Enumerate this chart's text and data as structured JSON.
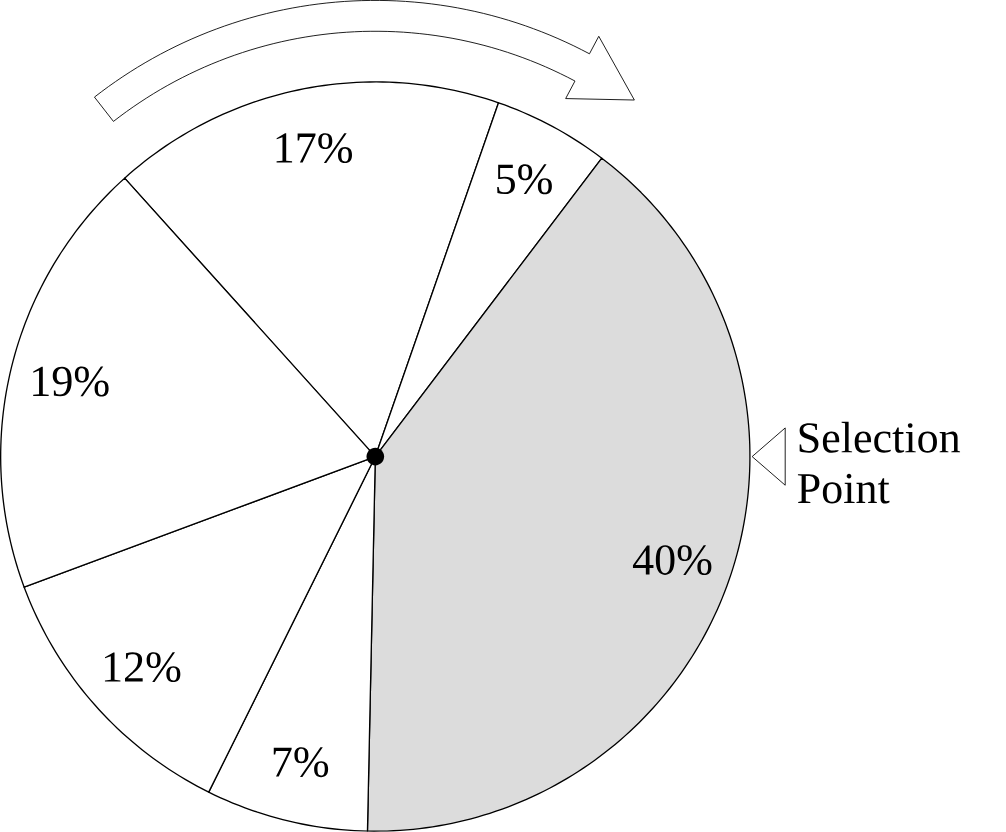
{
  "chart_data": {
    "type": "pie",
    "categories": [
      null,
      null,
      null,
      null,
      null,
      null
    ],
    "values": [
      17,
      5,
      40,
      7,
      12,
      19
    ],
    "colors": [
      "#ffffff",
      "#ffffff",
      "#dcdcdc",
      "#ffffff",
      "#ffffff",
      "#ffffff"
    ],
    "value_labels": [
      "17%",
      "5%",
      "40%",
      "7%",
      "12%",
      "19%"
    ],
    "annotations": [
      "Selection Point"
    ]
  }
}
